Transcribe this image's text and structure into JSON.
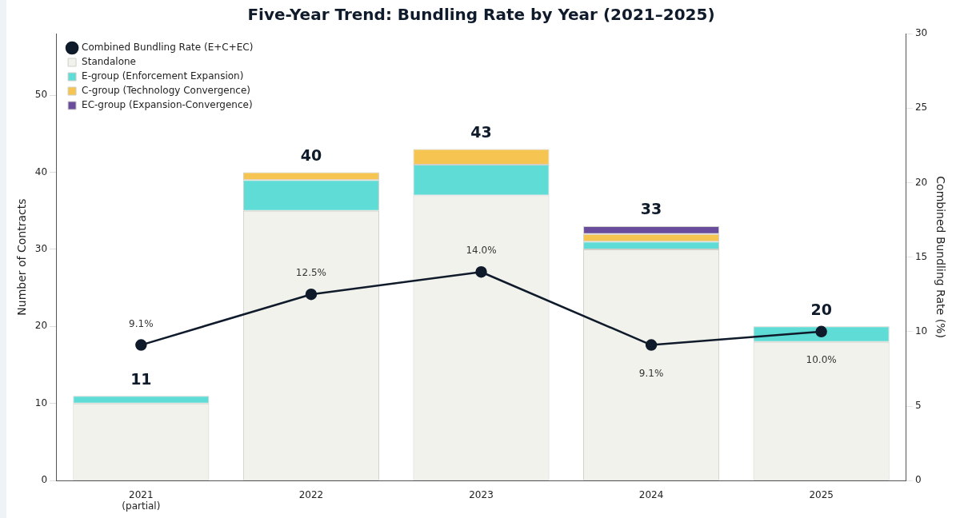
{
  "chart_data": {
    "type": "bar",
    "title": "Five-Year Trend: Bundling Rate by Year (2021–2025)",
    "categories": [
      "2021\n(partial)",
      "2022",
      "2023",
      "2024",
      "2025"
    ],
    "ylabel": "Number of Contracts",
    "y2label": "Combined Bundling Rate (%)",
    "stacked": true,
    "series": [
      {
        "name": "Standalone",
        "color": "#f2f2ec",
        "values": [
          10,
          35,
          37,
          30,
          18
        ]
      },
      {
        "name": "E-group (Enforcement Expansion)",
        "color": "#5fdcd6",
        "values": [
          1,
          4,
          4,
          1,
          2
        ]
      },
      {
        "name": "C-group (Technology Convergence)",
        "color": "#f5c451",
        "values": [
          0,
          1,
          2,
          1,
          0
        ]
      },
      {
        "name": "EC-group (Expansion-Convergence)",
        "color": "#6a4c9c",
        "values": [
          0,
          0,
          0,
          1,
          0
        ]
      },
      {
        "name": "Combined Bundling Rate (E+C+EC)",
        "type": "line",
        "axis": "y2",
        "color": "#0f1a2a",
        "marker": "circle",
        "values": [
          9.1,
          12.5,
          14.0,
          9.1,
          10.0
        ],
        "value_labels": [
          "9.1%",
          "12.5%",
          "14.0%",
          "9.1%",
          "10.0%"
        ]
      }
    ],
    "totals": [
      "11",
      "40",
      "43",
      "33",
      "20"
    ],
    "ylim": [
      0,
      58
    ],
    "yticks": [
      0,
      10,
      20,
      30,
      40,
      50
    ],
    "y2lim": [
      0,
      30
    ],
    "y2ticks": [
      0,
      5,
      10,
      15,
      20,
      25,
      30
    ],
    "grid": false,
    "legend": "top left"
  }
}
